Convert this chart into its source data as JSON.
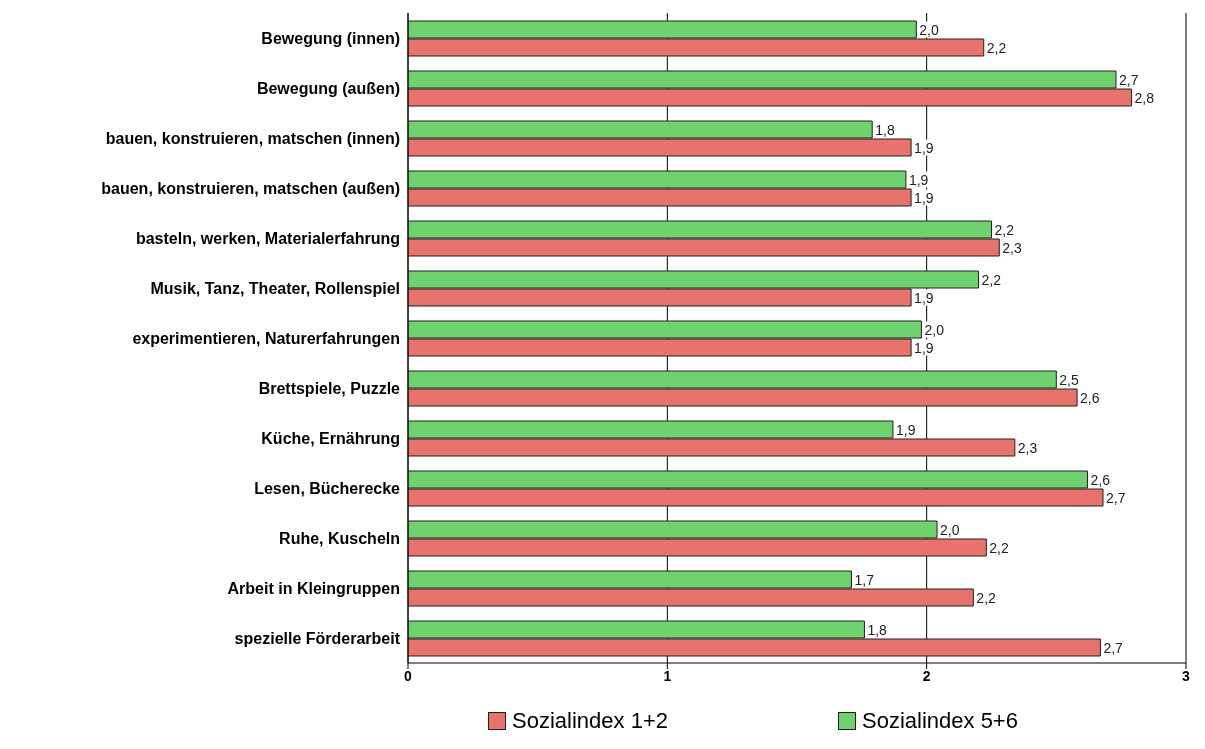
{
  "chart_data": {
    "type": "bar",
    "orientation": "horizontal",
    "categories": [
      "Bewegung (innen)",
      "Bewegung (außen)",
      "bauen, konstruieren, matschen (innen)",
      "bauen, konstruieren, matschen (außen)",
      "basteln, werken, Materialerfahrung",
      "Musik, Tanz, Theater, Rollenspiel",
      "experimentieren, Naturerfahrungen",
      "Brettspiele, Puzzle",
      "Küche, Ernährung",
      "Lesen, Bücherecke",
      "Ruhe, Kuscheln",
      "Arbeit in Kleingruppen",
      "spezielle Förderarbeit"
    ],
    "series": [
      {
        "name": "Sozialindex 1+2",
        "color": "#e8736c",
        "values": [
          2.22,
          2.79,
          1.94,
          1.94,
          2.28,
          1.94,
          1.94,
          2.58,
          2.34,
          2.68,
          2.23,
          2.18,
          2.67
        ],
        "value_labels": [
          "2,2",
          "2,8",
          "1,9",
          "1,9",
          "2,3",
          "1,9",
          "1,9",
          "2,6",
          "2,3",
          "2,7",
          "2,2",
          "2,2",
          "2,7"
        ]
      },
      {
        "name": "Sozialindex 5+6",
        "color": "#6fd26f",
        "values": [
          1.96,
          2.73,
          1.79,
          1.92,
          2.25,
          2.2,
          1.98,
          2.5,
          1.87,
          2.62,
          2.04,
          1.71,
          1.76
        ],
        "value_labels": [
          "2,0",
          "2,7",
          "1,8",
          "1,9",
          "2,2",
          "2,2",
          "2,0",
          "2,5",
          "1,9",
          "2,6",
          "2,0",
          "1,7",
          "1,8"
        ]
      }
    ],
    "xlim": [
      0,
      3
    ],
    "xticks": [
      0,
      1,
      2,
      3
    ],
    "grid": "x",
    "legend": "bottom"
  }
}
